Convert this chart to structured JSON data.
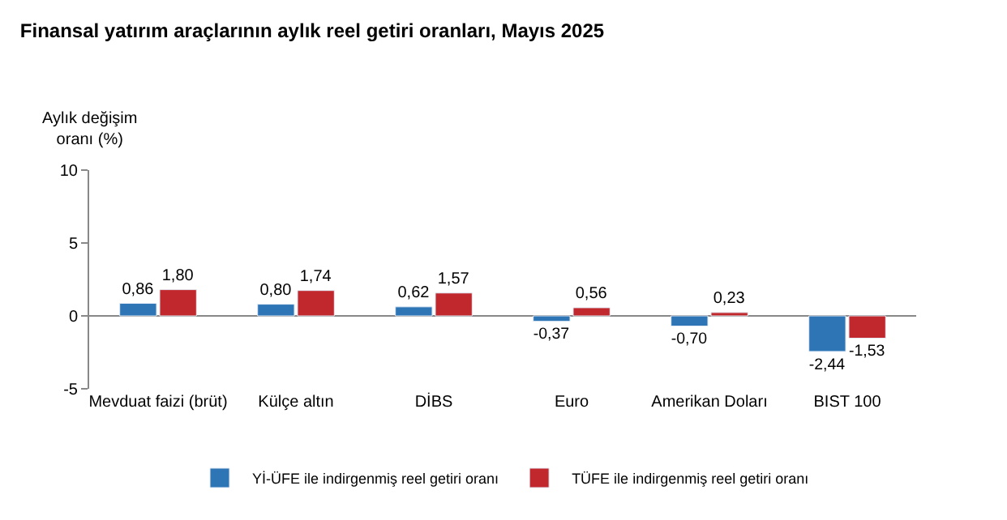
{
  "chart_data": {
    "type": "bar",
    "title": "Finansal yatırım araçlarının aylık reel getiri oranları, Mayıs 2025",
    "ylabel": "Aylık değişim\noranı (%)",
    "categories": [
      "Mevduat faizi (brüt)",
      "Külçe altın",
      "DİBS",
      "Euro",
      "Amerikan Doları",
      "BIST 100"
    ],
    "series": [
      {
        "name": "Yİ-ÜFE ile indirgenmiş reel getiri oranı",
        "color": "#2e75b6",
        "values": [
          0.86,
          0.8,
          0.62,
          -0.37,
          -0.7,
          -2.44
        ],
        "value_labels": [
          "0,86",
          "0,80",
          "0,62",
          "-0,37",
          "-0,70",
          "-2,44"
        ]
      },
      {
        "name": "TÜFE ile indirgenmiş reel getiri oranı",
        "color": "#c0282d",
        "values": [
          1.8,
          1.74,
          1.57,
          0.56,
          0.23,
          -1.53
        ],
        "value_labels": [
          "1,80",
          "1,74",
          "1,57",
          "0,56",
          "0,23",
          "-1,53"
        ]
      }
    ],
    "ylim": [
      -5,
      10
    ],
    "yticks": [
      -5,
      0,
      5,
      10
    ],
    "legend": "bottom"
  }
}
